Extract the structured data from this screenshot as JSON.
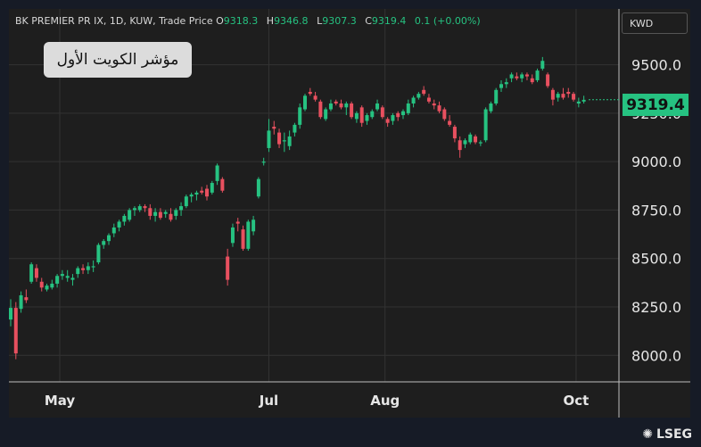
{
  "header": {
    "symbol_info": "BK PREMIER PR IX, 1D, KUW, Trade Price",
    "open_label": "O",
    "open_value": "9318.3",
    "high_label": "H",
    "high_value": "9346.8",
    "low_label": "L",
    "low_value": "9307.3",
    "close_label": "C",
    "close_value": "9319.4",
    "change_value": "0.1 (+0.00%)"
  },
  "title_box": {
    "text": "مؤشر الكويت الأول"
  },
  "currency": {
    "label": "KWD"
  },
  "last_price": {
    "label": "9319.4",
    "value": 9319.4
  },
  "brand": {
    "label": "LSEG",
    "icon": "lseg-logo-icon"
  },
  "colors": {
    "up": "#26c281",
    "down": "#e8505f",
    "background": "#1e1e1e",
    "grid": "#333333"
  },
  "chart_data": {
    "type": "candlestick",
    "title": "",
    "ylim": [
      7900,
      9650
    ],
    "y_ticks": [
      8000,
      8250,
      8500,
      8750,
      9000,
      9250,
      9500
    ],
    "y_tick_labels": [
      "8000.0",
      "8250.0",
      "8500.0",
      "8750.0",
      "9000.0",
      "9250.0",
      "9500.0"
    ],
    "x_tick_labels": [
      "May",
      "Jul",
      "Aug",
      "Oct"
    ],
    "x_tick_positions": [
      19,
      100,
      145,
      219
    ],
    "index_count": 228,
    "grid": true,
    "candles": [
      [
        0,
        8185,
        8290,
        8150,
        8245
      ],
      [
        2,
        8245,
        8275,
        7980,
        8010
      ],
      [
        4,
        8240,
        8330,
        8220,
        8310
      ],
      [
        6,
        8300,
        8340,
        8270,
        8285
      ],
      [
        8,
        8380,
        8480,
        8370,
        8470
      ],
      [
        10,
        8450,
        8470,
        8380,
        8400
      ],
      [
        12,
        8380,
        8400,
        8330,
        8350
      ],
      [
        14,
        8340,
        8370,
        8330,
        8360
      ],
      [
        16,
        8350,
        8390,
        8340,
        8370
      ],
      [
        18,
        8370,
        8420,
        8350,
        8410
      ],
      [
        20,
        8410,
        8440,
        8390,
        8420
      ],
      [
        22,
        8400,
        8440,
        8380,
        8410
      ],
      [
        24,
        8390,
        8420,
        8360,
        8400
      ],
      [
        26,
        8420,
        8460,
        8400,
        8450
      ],
      [
        28,
        8450,
        8470,
        8420,
        8440
      ],
      [
        30,
        8440,
        8480,
        8420,
        8460
      ],
      [
        32,
        8460,
        8490,
        8430,
        8460
      ],
      [
        34,
        8480,
        8580,
        8470,
        8570
      ],
      [
        36,
        8570,
        8600,
        8550,
        8590
      ],
      [
        38,
        8590,
        8630,
        8570,
        8620
      ],
      [
        40,
        8630,
        8680,
        8610,
        8660
      ],
      [
        42,
        8660,
        8700,
        8640,
        8690
      ],
      [
        44,
        8690,
        8730,
        8670,
        8720
      ],
      [
        46,
        8700,
        8760,
        8690,
        8750
      ],
      [
        48,
        8750,
        8770,
        8720,
        8760
      ],
      [
        50,
        8750,
        8780,
        8740,
        8770
      ],
      [
        52,
        8770,
        8780,
        8740,
        8760
      ],
      [
        54,
        8760,
        8780,
        8700,
        8720
      ],
      [
        56,
        8720,
        8760,
        8690,
        8740
      ],
      [
        58,
        8740,
        8760,
        8700,
        8710
      ],
      [
        60,
        8730,
        8750,
        8710,
        8740
      ],
      [
        62,
        8730,
        8760,
        8690,
        8700
      ],
      [
        64,
        8720,
        8760,
        8700,
        8750
      ],
      [
        66,
        8750,
        8790,
        8720,
        8770
      ],
      [
        68,
        8770,
        8830,
        8760,
        8820
      ],
      [
        70,
        8820,
        8840,
        8790,
        8830
      ],
      [
        72,
        8830,
        8850,
        8800,
        8840
      ],
      [
        74,
        8850,
        8870,
        8830,
        8840
      ],
      [
        76,
        8860,
        8880,
        8800,
        8820
      ],
      [
        78,
        8840,
        8900,
        8830,
        8890
      ],
      [
        80,
        8900,
        8990,
        8880,
        8980
      ],
      [
        82,
        8910,
        8920,
        8840,
        8850
      ],
      [
        84,
        8510,
        8550,
        8360,
        8390
      ],
      [
        86,
        8580,
        8680,
        8560,
        8660
      ],
      [
        88,
        8690,
        8710,
        8640,
        8680
      ],
      [
        90,
        8650,
        8670,
        8540,
        8550
      ],
      [
        92,
        8550,
        8700,
        8540,
        8690
      ],
      [
        94,
        8640,
        8720,
        8620,
        8700
      ],
      [
        96,
        8820,
        8920,
        8810,
        8910
      ],
      [
        98,
        9000,
        9020,
        8980,
        9000
      ],
      [
        100,
        9070,
        9220,
        9050,
        9160
      ],
      [
        102,
        9180,
        9210,
        9140,
        9170
      ],
      [
        104,
        9150,
        9170,
        9070,
        9090
      ],
      [
        106,
        9110,
        9150,
        9050,
        9110
      ],
      [
        108,
        9080,
        9160,
        9060,
        9130
      ],
      [
        110,
        9150,
        9200,
        9130,
        9190
      ],
      [
        112,
        9190,
        9300,
        9170,
        9280
      ],
      [
        114,
        9270,
        9350,
        9260,
        9340
      ],
      [
        116,
        9360,
        9380,
        9340,
        9350
      ],
      [
        118,
        9340,
        9360,
        9310,
        9320
      ],
      [
        120,
        9310,
        9320,
        9220,
        9230
      ],
      [
        122,
        9220,
        9280,
        9210,
        9270
      ],
      [
        124,
        9270,
        9320,
        9260,
        9300
      ],
      [
        126,
        9310,
        9320,
        9290,
        9300
      ],
      [
        128,
        9300,
        9320,
        9270,
        9280
      ],
      [
        130,
        9280,
        9310,
        9240,
        9300
      ],
      [
        132,
        9300,
        9310,
        9220,
        9230
      ],
      [
        134,
        9220,
        9260,
        9200,
        9250
      ],
      [
        136,
        9280,
        9290,
        9180,
        9200
      ],
      [
        138,
        9210,
        9250,
        9190,
        9240
      ],
      [
        140,
        9230,
        9270,
        9220,
        9260
      ],
      [
        142,
        9270,
        9320,
        9260,
        9300
      ],
      [
        144,
        9280,
        9290,
        9220,
        9230
      ],
      [
        146,
        9220,
        9230,
        9180,
        9200
      ],
      [
        148,
        9210,
        9250,
        9190,
        9240
      ],
      [
        150,
        9250,
        9260,
        9210,
        9230
      ],
      [
        152,
        9240,
        9270,
        9220,
        9260
      ],
      [
        154,
        9250,
        9320,
        9240,
        9300
      ],
      [
        156,
        9300,
        9340,
        9280,
        9330
      ],
      [
        158,
        9330,
        9360,
        9320,
        9350
      ],
      [
        160,
        9370,
        9390,
        9340,
        9350
      ],
      [
        162,
        9330,
        9350,
        9300,
        9310
      ],
      [
        164,
        9300,
        9320,
        9270,
        9290
      ],
      [
        166,
        9290,
        9310,
        9250,
        9260
      ],
      [
        168,
        9270,
        9280,
        9210,
        9220
      ],
      [
        170,
        9210,
        9240,
        9180,
        9190
      ],
      [
        172,
        9180,
        9190,
        9100,
        9120
      ],
      [
        174,
        9110,
        9130,
        9020,
        9060
      ],
      [
        176,
        9090,
        9120,
        9070,
        9110
      ],
      [
        178,
        9100,
        9150,
        9090,
        9140
      ],
      [
        180,
        9130,
        9140,
        9090,
        9100
      ],
      [
        182,
        9100,
        9110,
        9080,
        9100
      ],
      [
        184,
        9110,
        9280,
        9100,
        9270
      ],
      [
        186,
        9260,
        9310,
        9250,
        9300
      ],
      [
        188,
        9300,
        9380,
        9290,
        9370
      ],
      [
        190,
        9380,
        9420,
        9360,
        9400
      ],
      [
        192,
        9400,
        9430,
        9380,
        9410
      ],
      [
        194,
        9430,
        9460,
        9410,
        9450
      ],
      [
        196,
        9440,
        9460,
        9420,
        9430
      ],
      [
        198,
        9430,
        9460,
        9410,
        9450
      ],
      [
        200,
        9450,
        9460,
        9420,
        9440
      ],
      [
        202,
        9430,
        9450,
        9400,
        9410
      ],
      [
        204,
        9420,
        9480,
        9410,
        9470
      ],
      [
        206,
        9480,
        9540,
        9470,
        9520
      ],
      [
        208,
        9450,
        9460,
        9380,
        9390
      ],
      [
        210,
        9370,
        9380,
        9290,
        9320
      ],
      [
        212,
        9330,
        9360,
        9310,
        9350
      ],
      [
        214,
        9350,
        9380,
        9320,
        9330
      ],
      [
        216,
        9360,
        9380,
        9330,
        9350
      ],
      [
        218,
        9350,
        9360,
        9310,
        9320
      ],
      [
        220,
        9300,
        9330,
        9280,
        9310
      ],
      [
        222,
        9310,
        9340,
        9300,
        9319
      ]
    ]
  }
}
